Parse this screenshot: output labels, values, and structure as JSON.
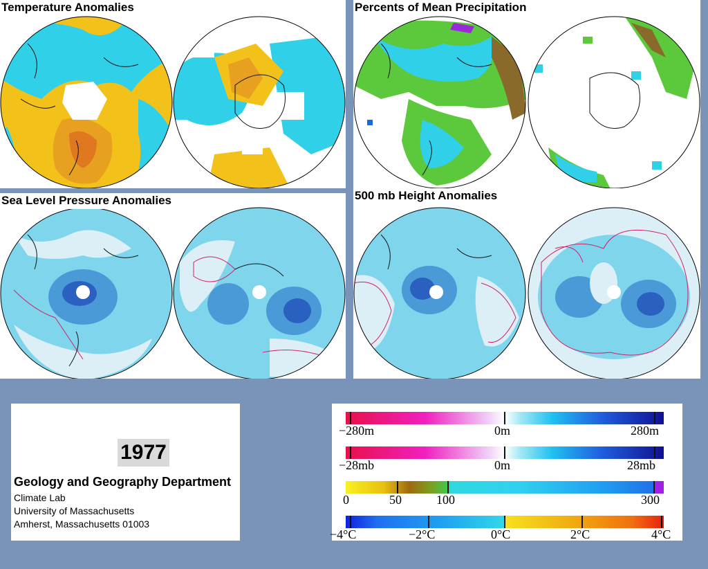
{
  "panels": {
    "temperature": {
      "title": "Temperature Anomalies"
    },
    "precipitation": {
      "title": "Percents of Mean Precipitation"
    },
    "slp": {
      "title": "Sea Level Pressure Anomalies"
    },
    "height500": {
      "title": "500 mb Height Anomalies"
    }
  },
  "info": {
    "year": "1977",
    "department": "Geology and Geography Department",
    "lines": [
      "Climate Lab",
      "University of Massachusetts",
      "Amherst, Massachusetts 01003"
    ]
  },
  "legend": {
    "height": {
      "min": "−280m",
      "mid": "0m",
      "max": "280m"
    },
    "pressure": {
      "min": "−28mb",
      "mid": "0m",
      "max": "28mb"
    },
    "precip": {
      "l0": "0",
      "l50": "50",
      "l100": "100",
      "l300": "300"
    },
    "temp": {
      "l1": "−4°C",
      "l2": "−2°C",
      "l3": "0°C",
      "l4": "2°C",
      "l5": "4°C"
    }
  },
  "colors": {
    "background": "#7a93b8",
    "temp_warm": "#f2c21a",
    "temp_cold": "#2fd0e8",
    "slp_fill": "#7fd6ec",
    "contour_neg": "#1a2aa0",
    "contour_pos": "#d0206a"
  }
}
